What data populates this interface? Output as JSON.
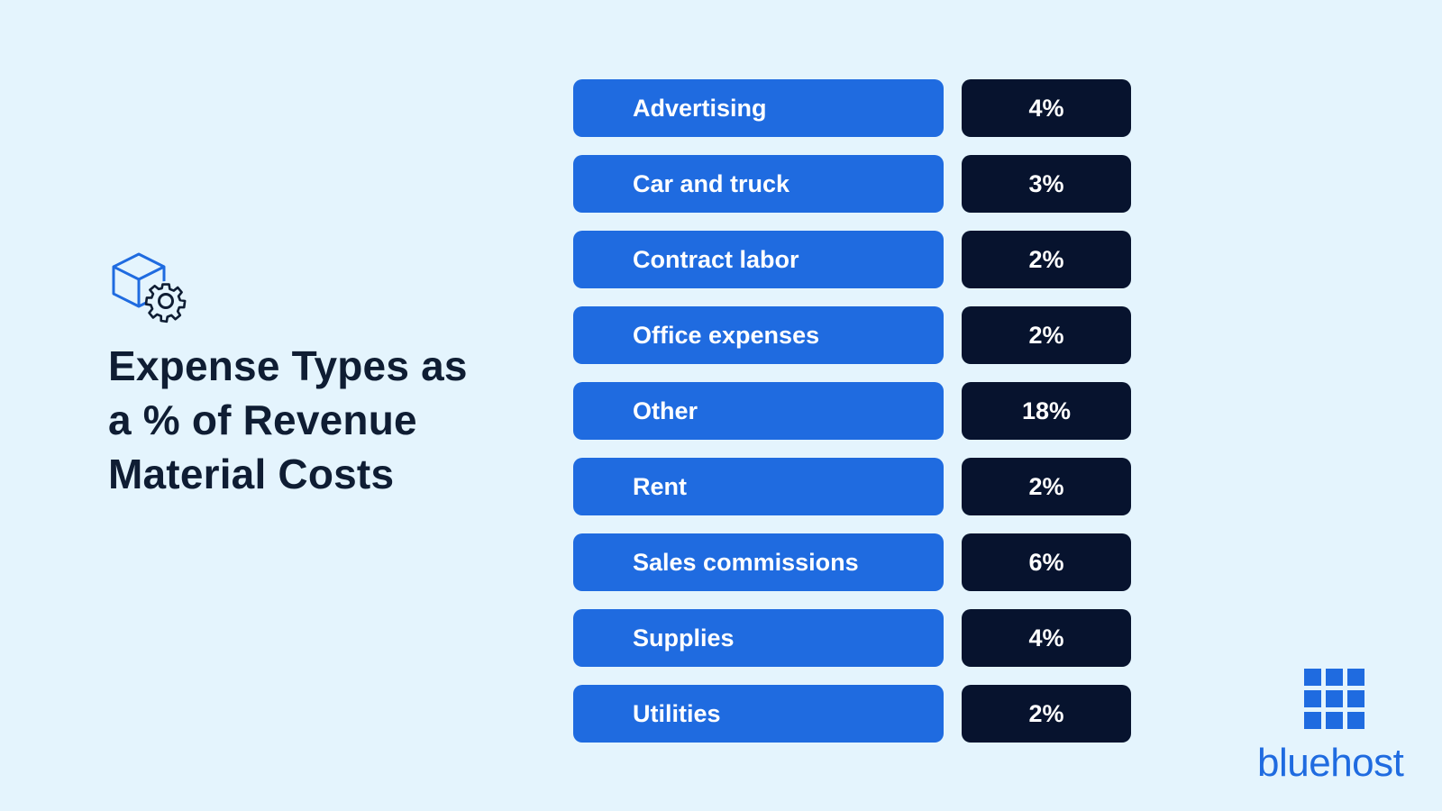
{
  "title_lines": [
    "Expense Types as",
    "a % of Revenue",
    "Material Costs"
  ],
  "icons": {
    "hero": "box-gear-icon",
    "logo": "bluehost-grid-logo"
  },
  "colors": {
    "background": "#e4f4fd",
    "label_pill": "#1f6be0",
    "value_pill": "#07132e",
    "title": "#0f1d33",
    "brand": "#1f6be0"
  },
  "chart_data": {
    "type": "table",
    "title": "Expense Types as a % of Revenue Material Costs",
    "categories": [
      "Advertising",
      "Car and truck",
      "Contract labor",
      "Office expenses",
      "Other",
      "Rent",
      "Sales commissions",
      "Supplies",
      "Utilities"
    ],
    "values": [
      4,
      3,
      2,
      2,
      18,
      2,
      6,
      4,
      2
    ],
    "value_labels": [
      "4%",
      "3%",
      "2%",
      "2%",
      "18%",
      "2%",
      "6%",
      "4%",
      "2%"
    ],
    "unit": "%"
  },
  "brand": {
    "name": "bluehost"
  }
}
